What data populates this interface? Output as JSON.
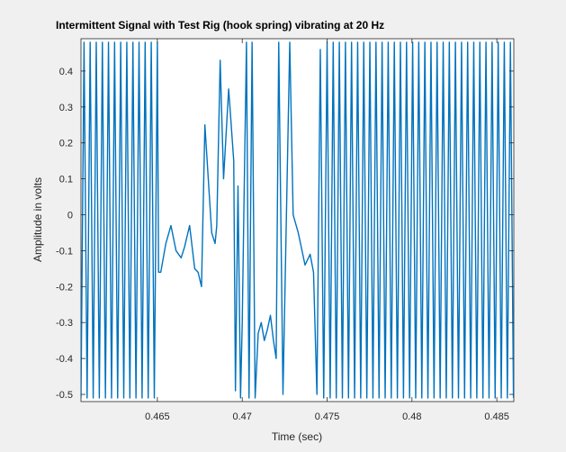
{
  "chart_data": {
    "type": "line",
    "title": "Intermittent Signal with Test Rig (hook spring) vibrating at 20 Hz",
    "xlabel": "Time (sec)",
    "ylabel": "Amplitude in volts",
    "xlim": [
      0.4605,
      0.486
    ],
    "ylim": [
      -0.52,
      0.49
    ],
    "x_ticks": [
      0.465,
      0.47,
      0.475,
      0.48,
      0.485
    ],
    "x_tick_labels": [
      "0.465",
      "0.47",
      "0.475",
      "0.48",
      "0.485"
    ],
    "y_ticks": [
      -0.5,
      -0.4,
      -0.3,
      -0.2,
      -0.1,
      0,
      0.1,
      0.2,
      0.3,
      0.4
    ],
    "y_tick_labels": [
      "-0.5",
      "-0.4",
      "-0.3",
      "-0.2",
      "-0.1",
      "0",
      "0.1",
      "0.2",
      "0.3",
      "0.4"
    ],
    "grid": false,
    "line_color": "#0072bd",
    "series": [
      {
        "values_note_free": true,
        "x": [
          0.4605,
          0.46068,
          0.46086,
          0.46104,
          0.46122,
          0.4614,
          0.46158,
          0.46176,
          0.46194,
          0.46212,
          0.4623,
          0.46248,
          0.46266,
          0.46284,
          0.46302,
          0.4632,
          0.46338,
          0.46356,
          0.46374,
          0.46392,
          0.4641,
          0.46428,
          0.46446,
          0.46464,
          0.46482,
          0.465,
          0.46507,
          0.4652,
          0.4655,
          0.4658,
          0.4661,
          0.4664,
          0.4666,
          0.4669,
          0.4672,
          0.4674,
          0.4676,
          0.4678,
          0.468,
          0.4682,
          0.4684,
          0.4685,
          0.4687,
          0.4689,
          0.4692,
          0.4695,
          0.4696,
          0.46975,
          0.4699,
          0.47,
          0.4701,
          0.47025,
          0.4704,
          0.47058,
          0.47076,
          0.47094,
          0.47112,
          0.4713,
          0.47148,
          0.47166,
          0.47184,
          0.472,
          0.47215,
          0.4724,
          0.4728,
          0.473,
          0.4733,
          0.4737,
          0.474,
          0.4742,
          0.4744,
          0.4746,
          0.4748,
          0.475,
          0.47518,
          0.47536,
          0.47554,
          0.47572,
          0.4759,
          0.47608,
          0.47626,
          0.47644,
          0.47662,
          0.4768,
          0.47698,
          0.47716,
          0.47734,
          0.47752,
          0.4777,
          0.47788,
          0.47806,
          0.47824,
          0.47842,
          0.4786,
          0.47878,
          0.47896,
          0.47914,
          0.47932,
          0.4795,
          0.47968,
          0.47986,
          0.48004,
          0.48022,
          0.4804,
          0.48058,
          0.48076,
          0.48094,
          0.48112,
          0.4813,
          0.48148,
          0.48166,
          0.48184,
          0.48202,
          0.4822,
          0.48238,
          0.48256,
          0.48274,
          0.48292,
          0.4831,
          0.48328,
          0.48346,
          0.48364,
          0.48382,
          0.484,
          0.48418,
          0.48436,
          0.48454,
          0.48472,
          0.4849,
          0.48508,
          0.48526,
          0.48544,
          0.48562,
          0.4858,
          0.48598
        ],
        "y": [
          -0.51,
          0.48,
          -0.51,
          0.48,
          -0.51,
          0.48,
          -0.51,
          0.48,
          -0.51,
          0.48,
          -0.51,
          0.48,
          -0.51,
          0.48,
          -0.51,
          0.48,
          -0.51,
          0.48,
          -0.51,
          0.48,
          -0.51,
          0.48,
          -0.51,
          0.48,
          -0.51,
          0.48,
          -0.16,
          -0.16,
          -0.08,
          -0.03,
          -0.1,
          -0.12,
          -0.09,
          -0.03,
          -0.15,
          -0.16,
          -0.2,
          0.25,
          0.1,
          -0.05,
          -0.08,
          -0.03,
          0.43,
          0.1,
          0.35,
          0.15,
          -0.49,
          0.08,
          -0.51,
          -0.3,
          0.02,
          0.48,
          -0.51,
          0.48,
          -0.51,
          -0.33,
          -0.3,
          -0.35,
          -0.32,
          -0.28,
          -0.35,
          -0.4,
          0.48,
          -0.5,
          0.48,
          0.0,
          -0.05,
          -0.14,
          -0.11,
          -0.16,
          -0.5,
          0.46,
          -0.51,
          0.48,
          -0.51,
          0.48,
          -0.51,
          0.48,
          -0.51,
          0.48,
          -0.51,
          0.48,
          -0.51,
          0.48,
          -0.51,
          0.48,
          -0.51,
          0.48,
          -0.51,
          0.48,
          -0.51,
          0.48,
          -0.51,
          0.48,
          -0.51,
          0.48,
          -0.51,
          0.48,
          -0.51,
          0.48,
          -0.51,
          0.48,
          -0.51,
          0.48,
          -0.51,
          0.48,
          -0.51,
          0.48,
          -0.51,
          0.48,
          -0.51,
          0.48,
          -0.51,
          0.48,
          -0.51,
          0.48,
          -0.51,
          0.48,
          -0.51,
          0.48,
          -0.51,
          0.48,
          -0.51,
          0.48,
          -0.51,
          0.48,
          -0.51,
          0.48,
          -0.51,
          0.48,
          -0.51,
          0.48,
          -0.51,
          0.48,
          -0.51
        ]
      }
    ]
  }
}
